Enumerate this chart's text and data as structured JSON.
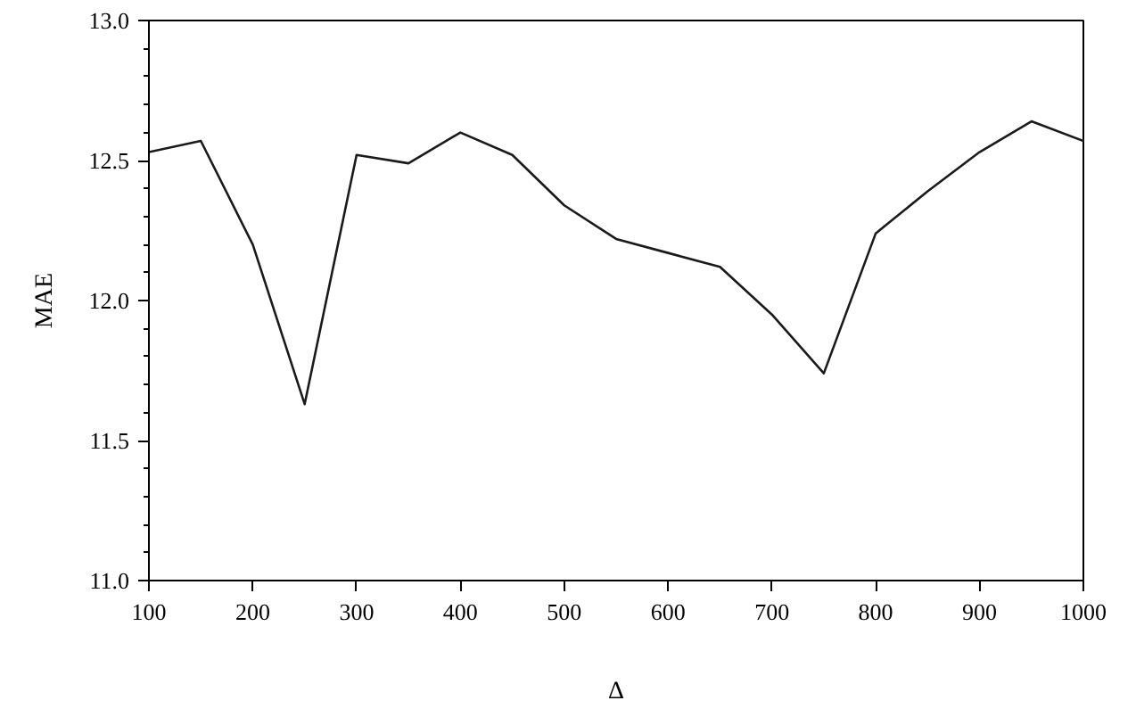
{
  "chart_data": {
    "type": "line",
    "xlabel": "Δ",
    "ylabel": "MAE",
    "x": [
      100,
      150,
      200,
      250,
      300,
      350,
      400,
      450,
      500,
      550,
      600,
      650,
      700,
      750,
      800,
      850,
      900,
      950,
      1000
    ],
    "series": [
      {
        "color": "#1a1a1a",
        "values": [
          12.53,
          12.57,
          12.2,
          11.63,
          12.52,
          12.49,
          12.6,
          12.52,
          12.34,
          12.22,
          12.17,
          12.12,
          11.95,
          11.74,
          12.24,
          12.39,
          12.53,
          12.64,
          12.57
        ]
      }
    ],
    "xlim": [
      100,
      1000
    ],
    "ylim": [
      11.0,
      13.0
    ],
    "xticks": [
      100,
      200,
      300,
      400,
      500,
      600,
      700,
      800,
      900,
      1000
    ],
    "yticks": [
      {
        "value": 11,
        "label": "11.0"
      },
      {
        "value": 11.5,
        "label": "11.5"
      },
      {
        "value": 12,
        "label": "12.0"
      },
      {
        "value": 12.5,
        "label": "12.5"
      },
      {
        "value": 13,
        "label": "13.0"
      }
    ],
    "grid": false,
    "marker": "none",
    "line_style": "solid"
  }
}
